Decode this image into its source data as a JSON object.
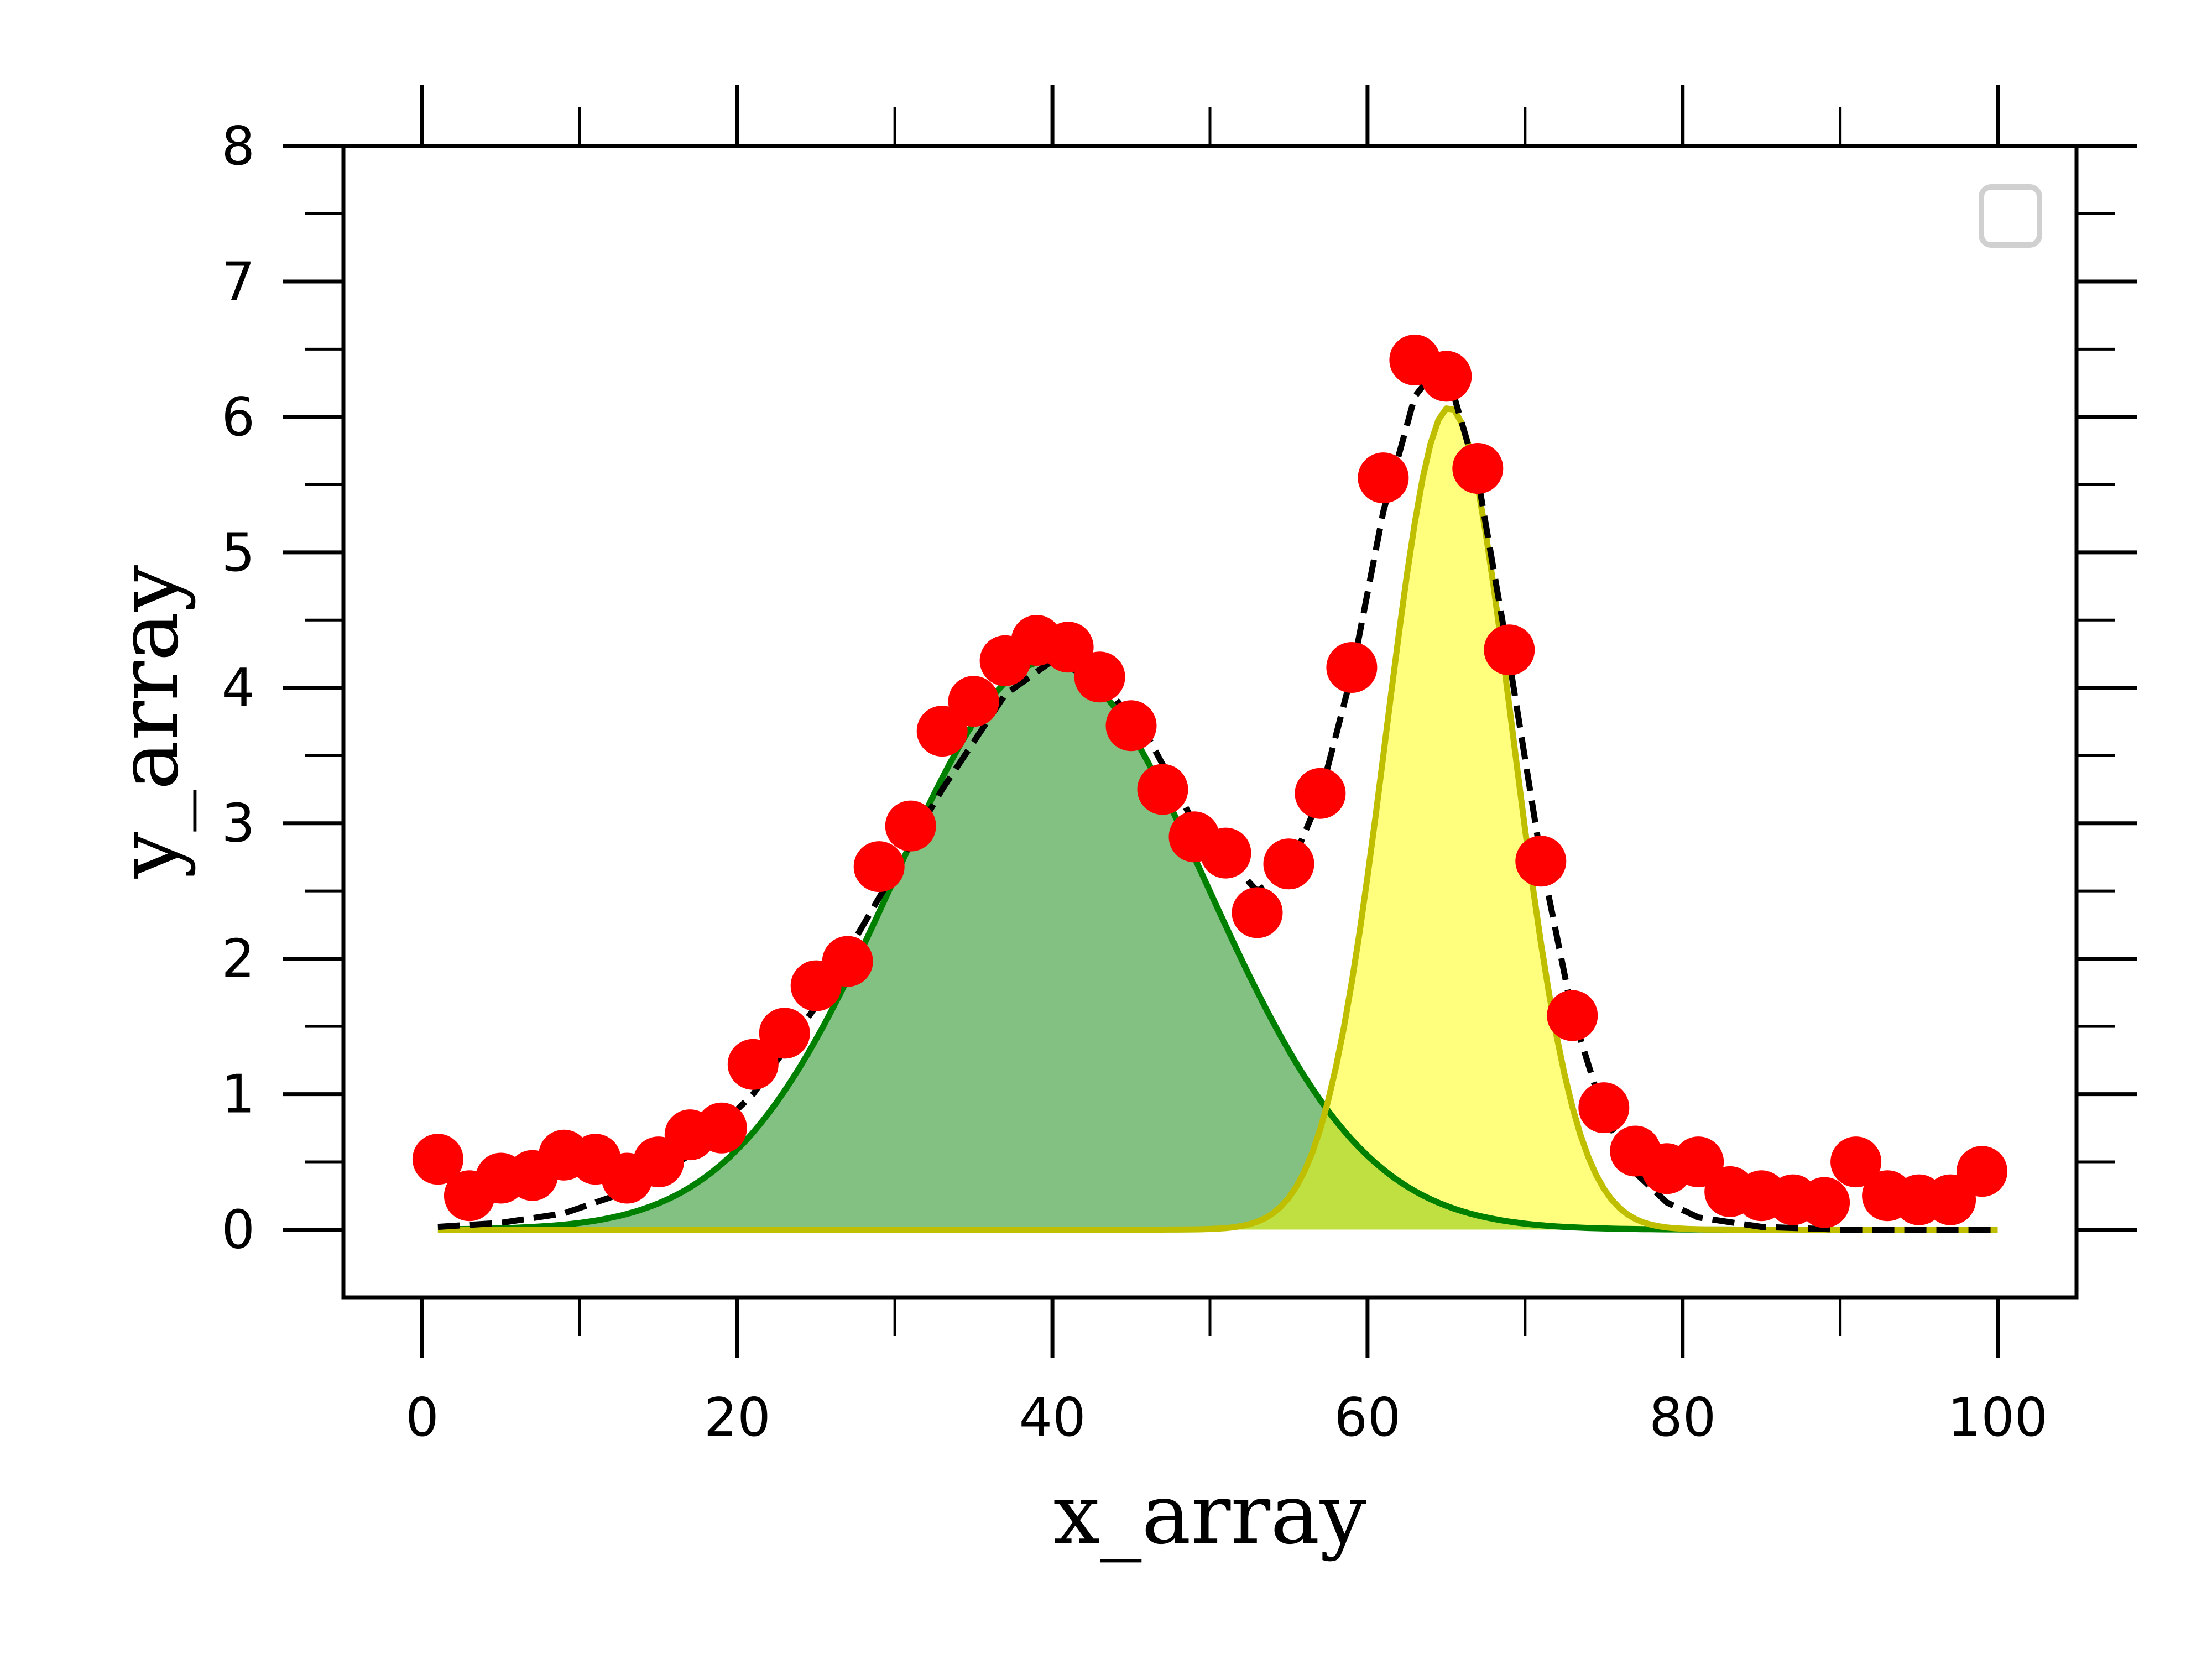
{
  "chart_data": {
    "type": "scatter",
    "title": "",
    "xlabel": "x_array",
    "ylabel": "y_array",
    "xlim": [
      -5,
      105
    ],
    "ylim": [
      -0.5,
      8
    ],
    "x_ticks_major": [
      0,
      20,
      40,
      60,
      80,
      100
    ],
    "x_ticks_minor": [
      10,
      30,
      50,
      70,
      90
    ],
    "y_ticks_major": [
      0,
      1,
      2,
      3,
      4,
      5,
      6,
      7,
      8
    ],
    "y_ticks_minor": [
      0.5,
      1.5,
      2.5,
      3.5,
      4.5,
      5.5,
      6.5,
      7.5
    ],
    "x_tick_labels": [
      "0",
      "20",
      "40",
      "60",
      "80",
      "100"
    ],
    "y_tick_labels": [
      "0",
      "1",
      "2",
      "3",
      "4",
      "5",
      "6",
      "7",
      "8"
    ],
    "grid": false,
    "legend": {
      "placement": "top-right",
      "entries": []
    },
    "series": [
      {
        "kind": "scatter",
        "color": "#ff0000",
        "points": [
          [
            1.0,
            0.52
          ],
          [
            3.0,
            0.25
          ],
          [
            5.0,
            0.38
          ],
          [
            7.0,
            0.4
          ],
          [
            9.0,
            0.55
          ],
          [
            11.0,
            0.52
          ],
          [
            13.0,
            0.38
          ],
          [
            15.0,
            0.5
          ],
          [
            17.0,
            0.7
          ],
          [
            19.0,
            0.75
          ],
          [
            21.0,
            1.22
          ],
          [
            23.0,
            1.45
          ],
          [
            25.0,
            1.8
          ],
          [
            27.0,
            1.98
          ],
          [
            29.0,
            2.68
          ],
          [
            31.0,
            2.98
          ],
          [
            33.0,
            3.68
          ],
          [
            35.0,
            3.9
          ],
          [
            37.0,
            4.2
          ],
          [
            39.0,
            4.35
          ],
          [
            41.0,
            4.3
          ],
          [
            43.0,
            4.08
          ],
          [
            45.0,
            3.72
          ],
          [
            47.0,
            3.25
          ],
          [
            49.0,
            2.9
          ],
          [
            51.0,
            2.78
          ],
          [
            53.0,
            2.34
          ],
          [
            55.0,
            2.7
          ],
          [
            57.0,
            3.22
          ],
          [
            59.0,
            4.15
          ],
          [
            61.0,
            5.55
          ],
          [
            63.0,
            6.42
          ],
          [
            65.0,
            6.3
          ],
          [
            67.0,
            5.62
          ],
          [
            69.0,
            4.28
          ],
          [
            71.0,
            2.72
          ],
          [
            73.0,
            1.58
          ],
          [
            75.0,
            0.9
          ],
          [
            77.0,
            0.58
          ],
          [
            79.0,
            0.45
          ],
          [
            81.0,
            0.5
          ],
          [
            83.0,
            0.28
          ],
          [
            85.0,
            0.25
          ],
          [
            87.0,
            0.22
          ],
          [
            89.0,
            0.2
          ],
          [
            91.0,
            0.5
          ],
          [
            93.0,
            0.25
          ],
          [
            95.0,
            0.22
          ],
          [
            97.0,
            0.22
          ],
          [
            99.0,
            0.43
          ]
        ]
      },
      {
        "kind": "line",
        "color": "#000000",
        "dash": "dashed",
        "points": [
          [
            1,
            0.02
          ],
          [
            5,
            0.05
          ],
          [
            9,
            0.12
          ],
          [
            13,
            0.28
          ],
          [
            17,
            0.55
          ],
          [
            21,
            1.0
          ],
          [
            25,
            1.65
          ],
          [
            29,
            2.45
          ],
          [
            33,
            3.25
          ],
          [
            37,
            3.95
          ],
          [
            40,
            4.2
          ],
          [
            43,
            4.05
          ],
          [
            46,
            3.65
          ],
          [
            49,
            3.0
          ],
          [
            51,
            2.75
          ],
          [
            53,
            2.5
          ],
          [
            55,
            2.65
          ],
          [
            57,
            3.2
          ],
          [
            59,
            4.1
          ],
          [
            61,
            5.3
          ],
          [
            63,
            6.15
          ],
          [
            64,
            6.3
          ],
          [
            65,
            6.35
          ],
          [
            67,
            5.55
          ],
          [
            69,
            4.2
          ],
          [
            71,
            2.75
          ],
          [
            73,
            1.6
          ],
          [
            75,
            0.85
          ],
          [
            77,
            0.42
          ],
          [
            79,
            0.2
          ],
          [
            81,
            0.09
          ],
          [
            85,
            0.02
          ],
          [
            90,
            0.0
          ],
          [
            100,
            0.0
          ]
        ]
      },
      {
        "kind": "gaussian_fill",
        "line_color": "#008000",
        "fill_color": "#80c080",
        "amplitude": 4.2,
        "center": 39.8,
        "sigma": 10.0
      },
      {
        "kind": "gaussian_fill",
        "line_color": "#bfbf00",
        "fill_color": "#ffff7a",
        "amplitude": 6.07,
        "center": 65.2,
        "sigma": 4.0
      }
    ]
  }
}
